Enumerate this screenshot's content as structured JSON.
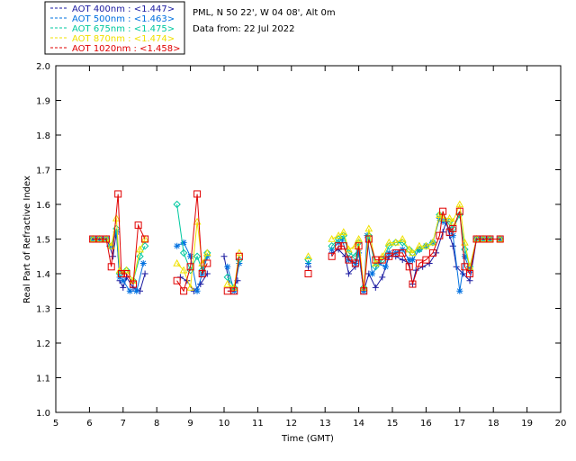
{
  "chart_data": {
    "type": "line",
    "xlabel": "Time (GMT)",
    "ylabel": "Real Part of Refractive Index",
    "xlim": [
      5,
      20
    ],
    "ylim": [
      1.0,
      2.0
    ],
    "x_ticks": [
      "5",
      "6",
      "7",
      "8",
      "9",
      "10",
      "11",
      "12",
      "13",
      "14",
      "15",
      "16",
      "17",
      "18",
      "19",
      "20"
    ],
    "y_ticks": [
      "1.0",
      "1.1",
      "1.2",
      "1.3",
      "1.4",
      "1.5",
      "1.6",
      "1.7",
      "1.8",
      "1.9",
      "2.0"
    ],
    "info": [
      "PML, N 50 22', W 04 08', Alt 0m",
      "Data from: 22 Jul 2022"
    ],
    "legend_placement": "top-left",
    "series": [
      {
        "name": "AOT  400nm : <1.447>",
        "color": "#1a1aa0",
        "marker": "plus",
        "points": [
          [
            6.1,
            1.5
          ],
          [
            6.3,
            1.5
          ],
          [
            6.5,
            1.5
          ],
          [
            6.6,
            1.48
          ],
          [
            6.7,
            1.45
          ],
          [
            6.8,
            1.52
          ],
          [
            6.9,
            1.38
          ],
          [
            7.0,
            1.36
          ],
          [
            7.1,
            1.39
          ],
          [
            7.3,
            1.36
          ],
          [
            7.5,
            1.35
          ],
          [
            7.65,
            1.4
          ],
          null,
          [
            8.7,
            1.39
          ],
          [
            8.9,
            1.38
          ],
          [
            9.1,
            1.35
          ],
          [
            9.3,
            1.37
          ],
          [
            9.5,
            1.4
          ],
          null,
          [
            10.0,
            1.45
          ],
          [
            10.2,
            1.35
          ],
          [
            10.4,
            1.38
          ],
          null,
          [
            12.5,
            1.42
          ],
          null,
          [
            13.2,
            1.46
          ],
          [
            13.4,
            1.47
          ],
          [
            13.6,
            1.45
          ],
          [
            13.7,
            1.4
          ],
          [
            13.9,
            1.42
          ],
          [
            14.0,
            1.46
          ],
          [
            14.15,
            1.35
          ],
          [
            14.3,
            1.4
          ],
          [
            14.5,
            1.36
          ],
          [
            14.7,
            1.39
          ],
          [
            14.9,
            1.45
          ],
          [
            15.1,
            1.45
          ],
          [
            15.3,
            1.44
          ],
          [
            15.5,
            1.43
          ],
          [
            15.6,
            1.37
          ],
          [
            15.7,
            1.41
          ],
          [
            15.9,
            1.42
          ],
          [
            16.1,
            1.43
          ],
          [
            16.3,
            1.46
          ],
          [
            16.5,
            1.52
          ],
          [
            16.6,
            1.55
          ],
          [
            16.7,
            1.51
          ],
          [
            16.8,
            1.48
          ],
          [
            16.9,
            1.42
          ],
          [
            17.1,
            1.4
          ],
          [
            17.3,
            1.38
          ],
          [
            17.5,
            1.5
          ],
          [
            17.7,
            1.5
          ],
          [
            17.9,
            1.5
          ],
          [
            18.2,
            1.5
          ]
        ]
      },
      {
        "name": "AOT  500nm : <1.463>",
        "color": "#0070e0",
        "marker": "asterisk",
        "points": [
          [
            6.1,
            1.5
          ],
          [
            6.3,
            1.5
          ],
          [
            6.5,
            1.5
          ],
          [
            6.65,
            1.48
          ],
          [
            6.8,
            1.52
          ],
          [
            6.9,
            1.39
          ],
          [
            7.0,
            1.38
          ],
          [
            7.2,
            1.35
          ],
          [
            7.4,
            1.35
          ],
          [
            7.6,
            1.43
          ],
          null,
          [
            8.6,
            1.48
          ],
          [
            8.8,
            1.49
          ],
          [
            9.0,
            1.45
          ],
          [
            9.2,
            1.35
          ],
          [
            9.35,
            1.4
          ],
          [
            9.5,
            1.45
          ],
          null,
          [
            10.1,
            1.42
          ],
          [
            10.3,
            1.35
          ],
          [
            10.45,
            1.43
          ],
          null,
          [
            12.5,
            1.43
          ],
          null,
          [
            13.2,
            1.47
          ],
          [
            13.4,
            1.49
          ],
          [
            13.5,
            1.5
          ],
          [
            13.7,
            1.44
          ],
          [
            13.9,
            1.43
          ],
          [
            14.0,
            1.46
          ],
          [
            14.15,
            1.35
          ],
          [
            14.25,
            1.51
          ],
          [
            14.4,
            1.4
          ],
          [
            14.6,
            1.43
          ],
          [
            14.8,
            1.42
          ],
          [
            14.9,
            1.46
          ],
          [
            15.1,
            1.46
          ],
          [
            15.3,
            1.47
          ],
          [
            15.5,
            1.44
          ],
          [
            15.6,
            1.44
          ],
          [
            15.8,
            1.47
          ],
          [
            16.0,
            1.48
          ],
          [
            16.2,
            1.49
          ],
          [
            16.4,
            1.56
          ],
          [
            16.5,
            1.55
          ],
          [
            16.7,
            1.53
          ],
          [
            16.8,
            1.51
          ],
          [
            17.0,
            1.35
          ],
          [
            17.15,
            1.45
          ],
          [
            17.3,
            1.41
          ],
          [
            17.5,
            1.5
          ],
          [
            17.7,
            1.5
          ],
          [
            17.9,
            1.5
          ],
          [
            18.2,
            1.5
          ]
        ]
      },
      {
        "name": "AOT  675nm : <1.475>",
        "color": "#00c8a0",
        "marker": "diamond",
        "points": [
          [
            6.1,
            1.5
          ],
          [
            6.3,
            1.5
          ],
          [
            6.5,
            1.5
          ],
          [
            6.65,
            1.48
          ],
          [
            6.8,
            1.53
          ],
          [
            6.9,
            1.4
          ],
          [
            7.1,
            1.41
          ],
          [
            7.3,
            1.38
          ],
          [
            7.5,
            1.45
          ],
          [
            7.65,
            1.48
          ],
          null,
          [
            8.6,
            1.6
          ],
          [
            8.8,
            1.46
          ],
          [
            9.0,
            1.41
          ],
          [
            9.2,
            1.45
          ],
          [
            9.35,
            1.41
          ],
          [
            9.5,
            1.46
          ],
          null,
          [
            10.1,
            1.39
          ],
          [
            10.3,
            1.36
          ],
          [
            10.45,
            1.44
          ],
          null,
          [
            12.5,
            1.44
          ],
          null,
          [
            13.2,
            1.48
          ],
          [
            13.4,
            1.5
          ],
          [
            13.55,
            1.51
          ],
          [
            13.7,
            1.46
          ],
          [
            13.9,
            1.45
          ],
          [
            14.0,
            1.49
          ],
          [
            14.15,
            1.36
          ],
          [
            14.3,
            1.51
          ],
          [
            14.5,
            1.42
          ],
          [
            14.7,
            1.44
          ],
          [
            14.9,
            1.48
          ],
          [
            15.1,
            1.49
          ],
          [
            15.3,
            1.49
          ],
          [
            15.5,
            1.47
          ],
          [
            15.6,
            1.46
          ],
          [
            15.8,
            1.47
          ],
          [
            16.0,
            1.48
          ],
          [
            16.2,
            1.49
          ],
          [
            16.4,
            1.57
          ],
          [
            16.5,
            1.56
          ],
          [
            16.7,
            1.55
          ],
          [
            16.8,
            1.53
          ],
          [
            17.0,
            1.57
          ],
          [
            17.15,
            1.47
          ],
          [
            17.3,
            1.42
          ],
          [
            17.5,
            1.5
          ],
          [
            17.7,
            1.5
          ],
          [
            17.9,
            1.5
          ],
          [
            18.2,
            1.5
          ]
        ]
      },
      {
        "name": "AOT  870nm : <1.474>",
        "color": "#f0e000",
        "marker": "triangle",
        "points": [
          [
            6.1,
            1.5
          ],
          [
            6.3,
            1.5
          ],
          [
            6.5,
            1.5
          ],
          [
            6.65,
            1.48
          ],
          [
            6.8,
            1.56
          ],
          [
            6.9,
            1.41
          ],
          [
            7.1,
            1.41
          ],
          [
            7.3,
            1.38
          ],
          [
            7.5,
            1.47
          ],
          [
            7.65,
            1.5
          ],
          null,
          [
            8.6,
            1.43
          ],
          [
            8.8,
            1.41
          ],
          [
            9.0,
            1.36
          ],
          [
            9.2,
            1.55
          ],
          [
            9.35,
            1.43
          ],
          [
            9.5,
            1.46
          ],
          null,
          [
            10.1,
            1.37
          ],
          [
            10.3,
            1.36
          ],
          [
            10.45,
            1.46
          ],
          null,
          [
            12.5,
            1.45
          ],
          null,
          [
            13.2,
            1.5
          ],
          [
            13.4,
            1.51
          ],
          [
            13.55,
            1.52
          ],
          [
            13.7,
            1.47
          ],
          [
            13.9,
            1.48
          ],
          [
            14.0,
            1.5
          ],
          [
            14.15,
            1.36
          ],
          [
            14.3,
            1.53
          ],
          [
            14.5,
            1.43
          ],
          [
            14.7,
            1.45
          ],
          [
            14.9,
            1.49
          ],
          [
            15.1,
            1.49
          ],
          [
            15.3,
            1.5
          ],
          [
            15.5,
            1.47
          ],
          [
            15.6,
            1.46
          ],
          [
            15.8,
            1.48
          ],
          [
            16.0,
            1.48
          ],
          [
            16.2,
            1.49
          ],
          [
            16.4,
            1.57
          ],
          [
            16.5,
            1.56
          ],
          [
            16.7,
            1.56
          ],
          [
            16.8,
            1.55
          ],
          [
            17.0,
            1.6
          ],
          [
            17.15,
            1.49
          ],
          [
            17.3,
            1.42
          ],
          [
            17.5,
            1.5
          ],
          [
            17.7,
            1.5
          ],
          [
            17.9,
            1.5
          ],
          [
            18.2,
            1.5
          ]
        ]
      },
      {
        "name": "AOT 1020nm : <1.458>",
        "color": "#e00000",
        "marker": "square",
        "points": [
          [
            6.1,
            1.5
          ],
          [
            6.3,
            1.5
          ],
          [
            6.5,
            1.5
          ],
          [
            6.65,
            1.42
          ],
          [
            6.85,
            1.63
          ],
          [
            6.95,
            1.4
          ],
          [
            7.1,
            1.4
          ],
          [
            7.3,
            1.37
          ],
          [
            7.45,
            1.54
          ],
          [
            7.65,
            1.5
          ],
          null,
          [
            8.6,
            1.38
          ],
          [
            8.8,
            1.35
          ],
          [
            9.0,
            1.42
          ],
          [
            9.2,
            1.63
          ],
          [
            9.35,
            1.4
          ],
          [
            9.5,
            1.43
          ],
          null,
          [
            10.1,
            1.35
          ],
          [
            10.3,
            1.35
          ],
          [
            10.45,
            1.45
          ],
          null,
          [
            12.5,
            1.4
          ],
          null,
          [
            13.2,
            1.45
          ],
          [
            13.4,
            1.48
          ],
          [
            13.55,
            1.48
          ],
          [
            13.7,
            1.44
          ],
          [
            13.9,
            1.43
          ],
          [
            14.0,
            1.48
          ],
          [
            14.15,
            1.35
          ],
          [
            14.3,
            1.5
          ],
          [
            14.5,
            1.44
          ],
          [
            14.7,
            1.44
          ],
          [
            14.9,
            1.45
          ],
          [
            15.1,
            1.46
          ],
          [
            15.3,
            1.46
          ],
          [
            15.5,
            1.42
          ],
          [
            15.6,
            1.37
          ],
          [
            15.8,
            1.43
          ],
          [
            16.0,
            1.44
          ],
          [
            16.2,
            1.46
          ],
          [
            16.4,
            1.51
          ],
          [
            16.5,
            1.58
          ],
          [
            16.7,
            1.52
          ],
          [
            16.8,
            1.53
          ],
          [
            17.0,
            1.58
          ],
          [
            17.15,
            1.42
          ],
          [
            17.3,
            1.4
          ],
          [
            17.5,
            1.5
          ],
          [
            17.7,
            1.5
          ],
          [
            17.9,
            1.5
          ],
          [
            18.2,
            1.5
          ]
        ]
      }
    ]
  }
}
